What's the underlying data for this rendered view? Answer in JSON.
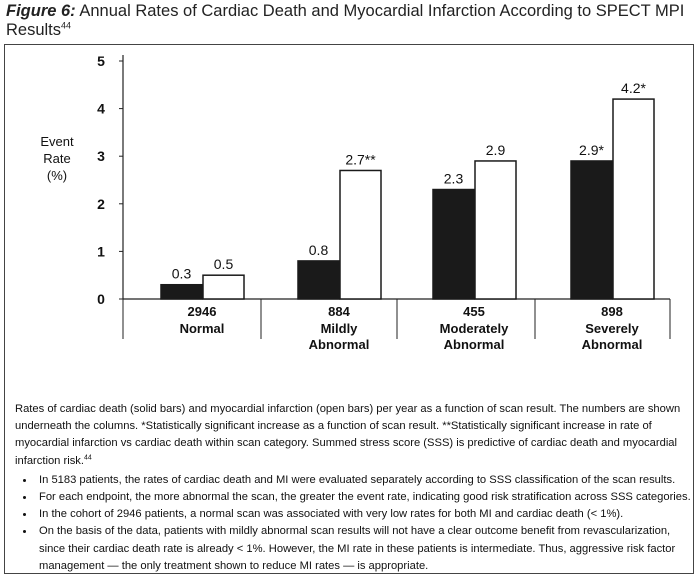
{
  "figure": {
    "lead": "Figure 6:",
    "title": "Annual Rates of Cardiac Death and Myocardial Infarction According to SPECT MPI Results",
    "ref": "44"
  },
  "chart_data": {
    "type": "bar",
    "categories": [
      {
        "count": "2946",
        "label_lines": [
          "Normal"
        ]
      },
      {
        "count": "884",
        "label_lines": [
          "Mildly",
          "Abnormal"
        ]
      },
      {
        "count": "455",
        "label_lines": [
          "Moderately",
          "Abnormal"
        ]
      },
      {
        "count": "898",
        "label_lines": [
          "Severely",
          "Abnormal"
        ]
      }
    ],
    "series": [
      {
        "name": "Cardiac death",
        "style": "solid",
        "values": [
          0.3,
          0.8,
          2.3,
          2.9
        ],
        "labels": [
          "0.3",
          "0.8",
          "2.3",
          "2.9*"
        ]
      },
      {
        "name": "Myocardial infarction",
        "style": "open",
        "values": [
          0.5,
          2.7,
          2.9,
          4.2
        ],
        "labels": [
          "0.5",
          "2.7**",
          "2.9",
          "4.2*"
        ]
      }
    ],
    "ylabel_lines": [
      "Event",
      "Rate",
      "(%)"
    ],
    "ylim": [
      0,
      5
    ],
    "yticks": [
      "0",
      "1",
      "2",
      "3",
      "4",
      "5"
    ],
    "grid": false,
    "colors": {
      "solid": "#1a1a1a",
      "open": "#ffffff",
      "axis": "#222222"
    }
  },
  "caption": {
    "text": "Rates of cardiac death (solid bars) and myocardial infarction (open bars) per year as a function of scan result. The numbers are shown underneath the columns. *Statistically significant increase as a function of scan result. **Statistically significant increase in rate of myocardial infarction vs cardiac death within scan category. Summed stress score (SSS) is predictive of cardiac death and myocardial infarction risk.",
    "ref": "44",
    "bullets": [
      "In 5183 patients, the rates of cardiac death and MI were evaluated separately according to SSS classification of the scan results.",
      "For each endpoint, the more abnormal the scan, the greater the event rate, indicating good risk stratification across SSS categories.",
      "In the cohort of 2946 patients, a normal scan was associated with very low rates for both MI and cardiac death (< 1%).",
      "On the basis of the data, patients with mildly abnormal scan results will not have a clear outcome benefit from revascularization, since their cardiac death rate is already < 1%. However, the MI rate in these patients is intermediate. Thus, aggressive risk factor management — the only treatment shown to reduce MI rates — is appropriate."
    ]
  }
}
